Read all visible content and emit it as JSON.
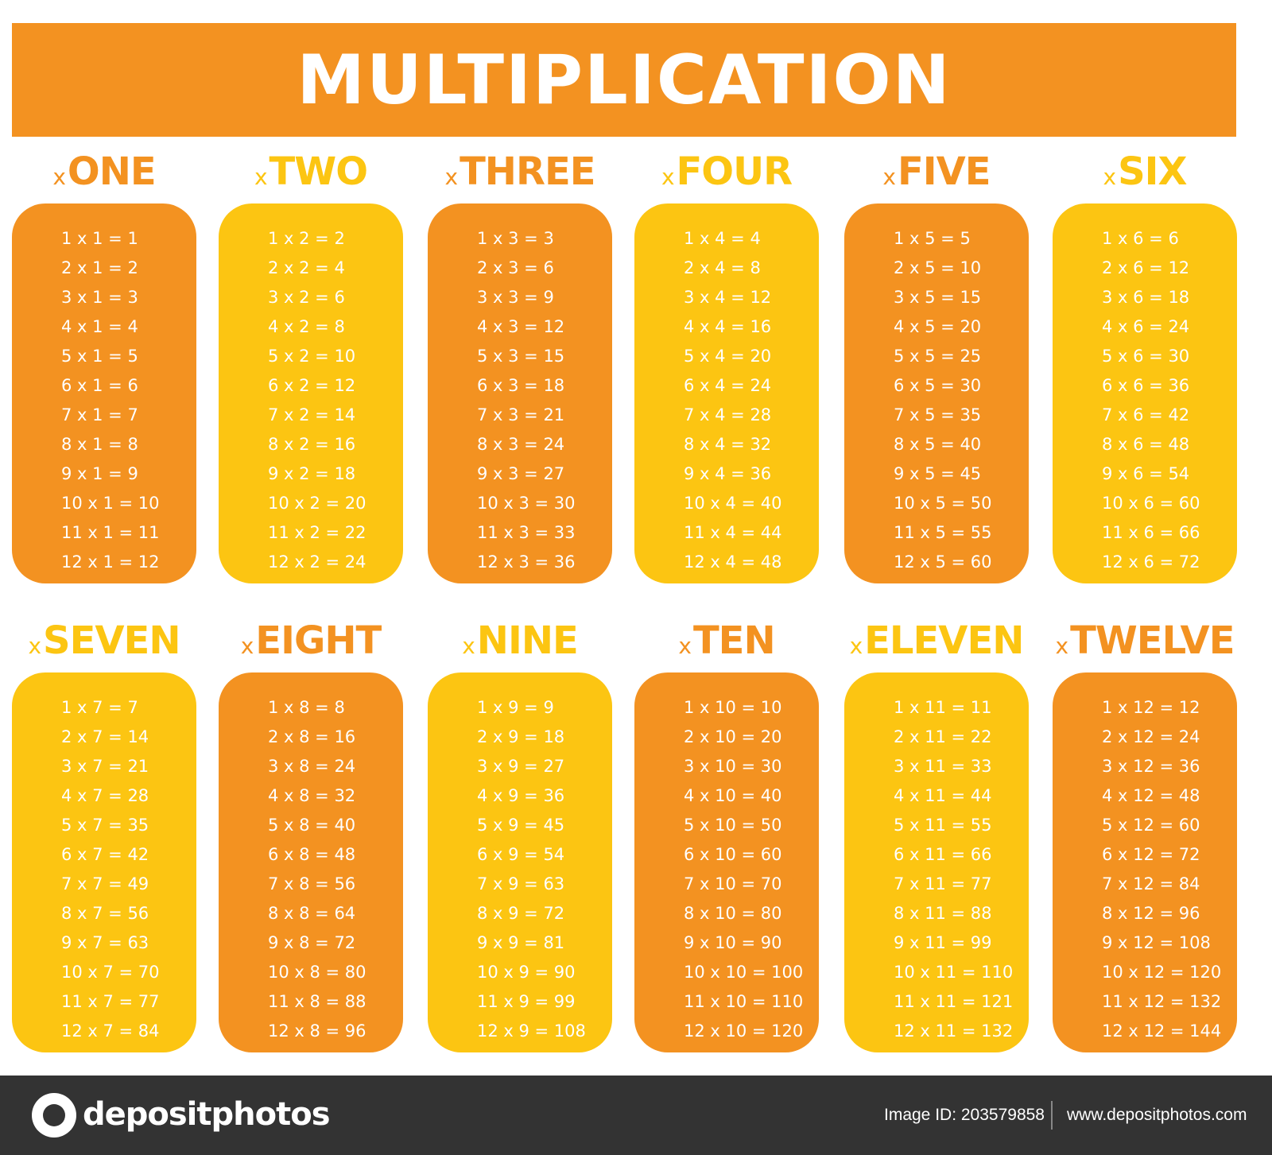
{
  "title": "MULTIPLICATION",
  "colors": {
    "orange": "#f39221",
    "yellow": "#fcc512",
    "white": "#ffffff",
    "footer": "#333333"
  },
  "tables": [
    {
      "prefix": "x",
      "label": "ONE",
      "color": "orange",
      "rows": [
        "1 x 1 = 1",
        "2 x 1 = 2",
        "3 x 1 = 3",
        "4 x 1 = 4",
        "5 x 1 = 5",
        "6 x 1 = 6",
        "7 x 1 = 7",
        "8 x 1 = 8",
        "9 x 1 = 9",
        "10 x 1 = 10",
        "11 x 1 = 11",
        "12 x 1 = 12"
      ]
    },
    {
      "prefix": "x",
      "label": "TWO",
      "color": "yellow",
      "rows": [
        "1 x 2 = 2",
        "2 x 2 = 4",
        "3 x 2 = 6",
        "4 x 2 = 8",
        "5 x 2 = 10",
        "6 x 2 = 12",
        "7 x 2 = 14",
        "8 x 2 = 16",
        "9 x 2 = 18",
        "10 x 2 = 20",
        "11 x 2 = 22",
        "12 x 2 = 24"
      ]
    },
    {
      "prefix": "x",
      "label": "THREE",
      "color": "orange",
      "rows": [
        "1 x 3 = 3",
        "2 x 3 = 6",
        "3 x 3 = 9",
        "4 x 3 = 12",
        "5 x 3 = 15",
        "6 x 3 = 18",
        "7 x 3 = 21",
        "8 x 3 = 24",
        "9 x 3 = 27",
        "10 x 3 = 30",
        "11 x 3 = 33",
        "12 x 3 = 36"
      ]
    },
    {
      "prefix": "x",
      "label": "FOUR",
      "color": "yellow",
      "rows": [
        "1 x 4 = 4",
        "2 x 4 = 8",
        "3 x 4 = 12",
        "4 x 4 = 16",
        "5 x 4 = 20",
        "6 x 4 = 24",
        "7 x 4 = 28",
        "8 x 4 = 32",
        "9 x 4 = 36",
        "10 x 4 = 40",
        "11 x 4 = 44",
        "12 x 4 = 48"
      ]
    },
    {
      "prefix": "x",
      "label": "FIVE",
      "color": "orange",
      "rows": [
        "1 x 5 = 5",
        "2 x 5 = 10",
        "3 x 5 = 15",
        "4 x 5 = 20",
        "5 x 5 = 25",
        "6 x 5 = 30",
        "7 x 5 = 35",
        "8 x 5 = 40",
        "9 x 5 = 45",
        "10 x 5 = 50",
        "11 x 5 = 55",
        "12 x 5 = 60"
      ]
    },
    {
      "prefix": "x",
      "label": "SIX",
      "color": "yellow",
      "rows": [
        "1 x 6 = 6",
        "2 x 6 = 12",
        "3 x 6 = 18",
        "4 x 6 = 24",
        "5 x 6 = 30",
        "6 x 6 = 36",
        "7 x 6 = 42",
        "8 x 6 = 48",
        "9 x 6 = 54",
        "10 x 6 = 60",
        "11 x 6 = 66",
        "12 x 6 = 72"
      ]
    },
    {
      "prefix": "x",
      "label": "SEVEN",
      "color": "yellow",
      "rows": [
        "1 x 7 = 7",
        "2 x 7 = 14",
        "3 x 7 = 21",
        "4 x 7 = 28",
        "5 x 7 = 35",
        "6 x 7 = 42",
        "7 x 7 = 49",
        "8 x 7 = 56",
        "9 x 7 = 63",
        "10 x 7 = 70",
        "11 x 7 = 77",
        "12 x 7 = 84"
      ]
    },
    {
      "prefix": "x",
      "label": "EIGHT",
      "color": "orange",
      "rows": [
        "1 x 8 = 8",
        "2 x 8 = 16",
        "3 x 8 = 24",
        "4 x 8 = 32",
        "5 x 8 = 40",
        "6 x 8 = 48",
        "7 x 8 = 56",
        "8 x 8 = 64",
        "9 x 8 = 72",
        "10 x 8 = 80",
        "11 x 8 = 88",
        "12 x 8 = 96"
      ]
    },
    {
      "prefix": "x",
      "label": "NINE",
      "color": "yellow",
      "rows": [
        "1 x 9 = 9",
        "2 x 9 = 18",
        "3 x 9 = 27",
        "4 x 9 = 36",
        "5 x 9 = 45",
        "6 x 9 = 54",
        "7 x 9 = 63",
        "8 x 9 = 72",
        "9 x 9 = 81",
        "10 x 9 = 90",
        "11 x 9 = 99",
        "12 x 9 = 108"
      ]
    },
    {
      "prefix": "x",
      "label": "TEN",
      "color": "orange",
      "rows": [
        "1 x 10 = 10",
        "2 x 10 = 20",
        "3 x 10 = 30",
        "4 x 10 = 40",
        "5 x 10 = 50",
        "6 x 10 = 60",
        "7 x 10 = 70",
        "8 x 10 = 80",
        "9 x 10 = 90",
        "10 x 10 = 100",
        "11 x 10 = 110",
        "12 x 10 = 120"
      ]
    },
    {
      "prefix": "x",
      "label": "ELEVEN",
      "color": "yellow",
      "rows": [
        "1 x 11 = 11",
        "2 x 11 = 22",
        "3 x 11 = 33",
        "4 x 11 = 44",
        "5 x 11 = 55",
        "6 x 11 = 66",
        "7 x 11 = 77",
        "8 x 11 = 88",
        "9 x 11 = 99",
        "10 x 11 = 110",
        "11 x 11 = 121",
        "12 x 11 = 132"
      ]
    },
    {
      "prefix": "x",
      "label": "TWELVE",
      "color": "orange",
      "rows": [
        "1 x 12 = 12",
        "2 x 12 = 24",
        "3 x 12 = 36",
        "4 x 12 = 48",
        "5 x 12 = 60",
        "6 x 12 = 72",
        "7 x 12 = 84",
        "8 x 12 = 96",
        "9 x 12 = 108",
        "10 x 12 = 120",
        "11 x 12 = 132",
        "12 x 12 = 144"
      ]
    }
  ],
  "footer": {
    "brand": "depositphotos",
    "image_id": "Image ID: 203579858",
    "site": "www.depositphotos.com",
    "logo_icon": "camera-lens-icon"
  }
}
